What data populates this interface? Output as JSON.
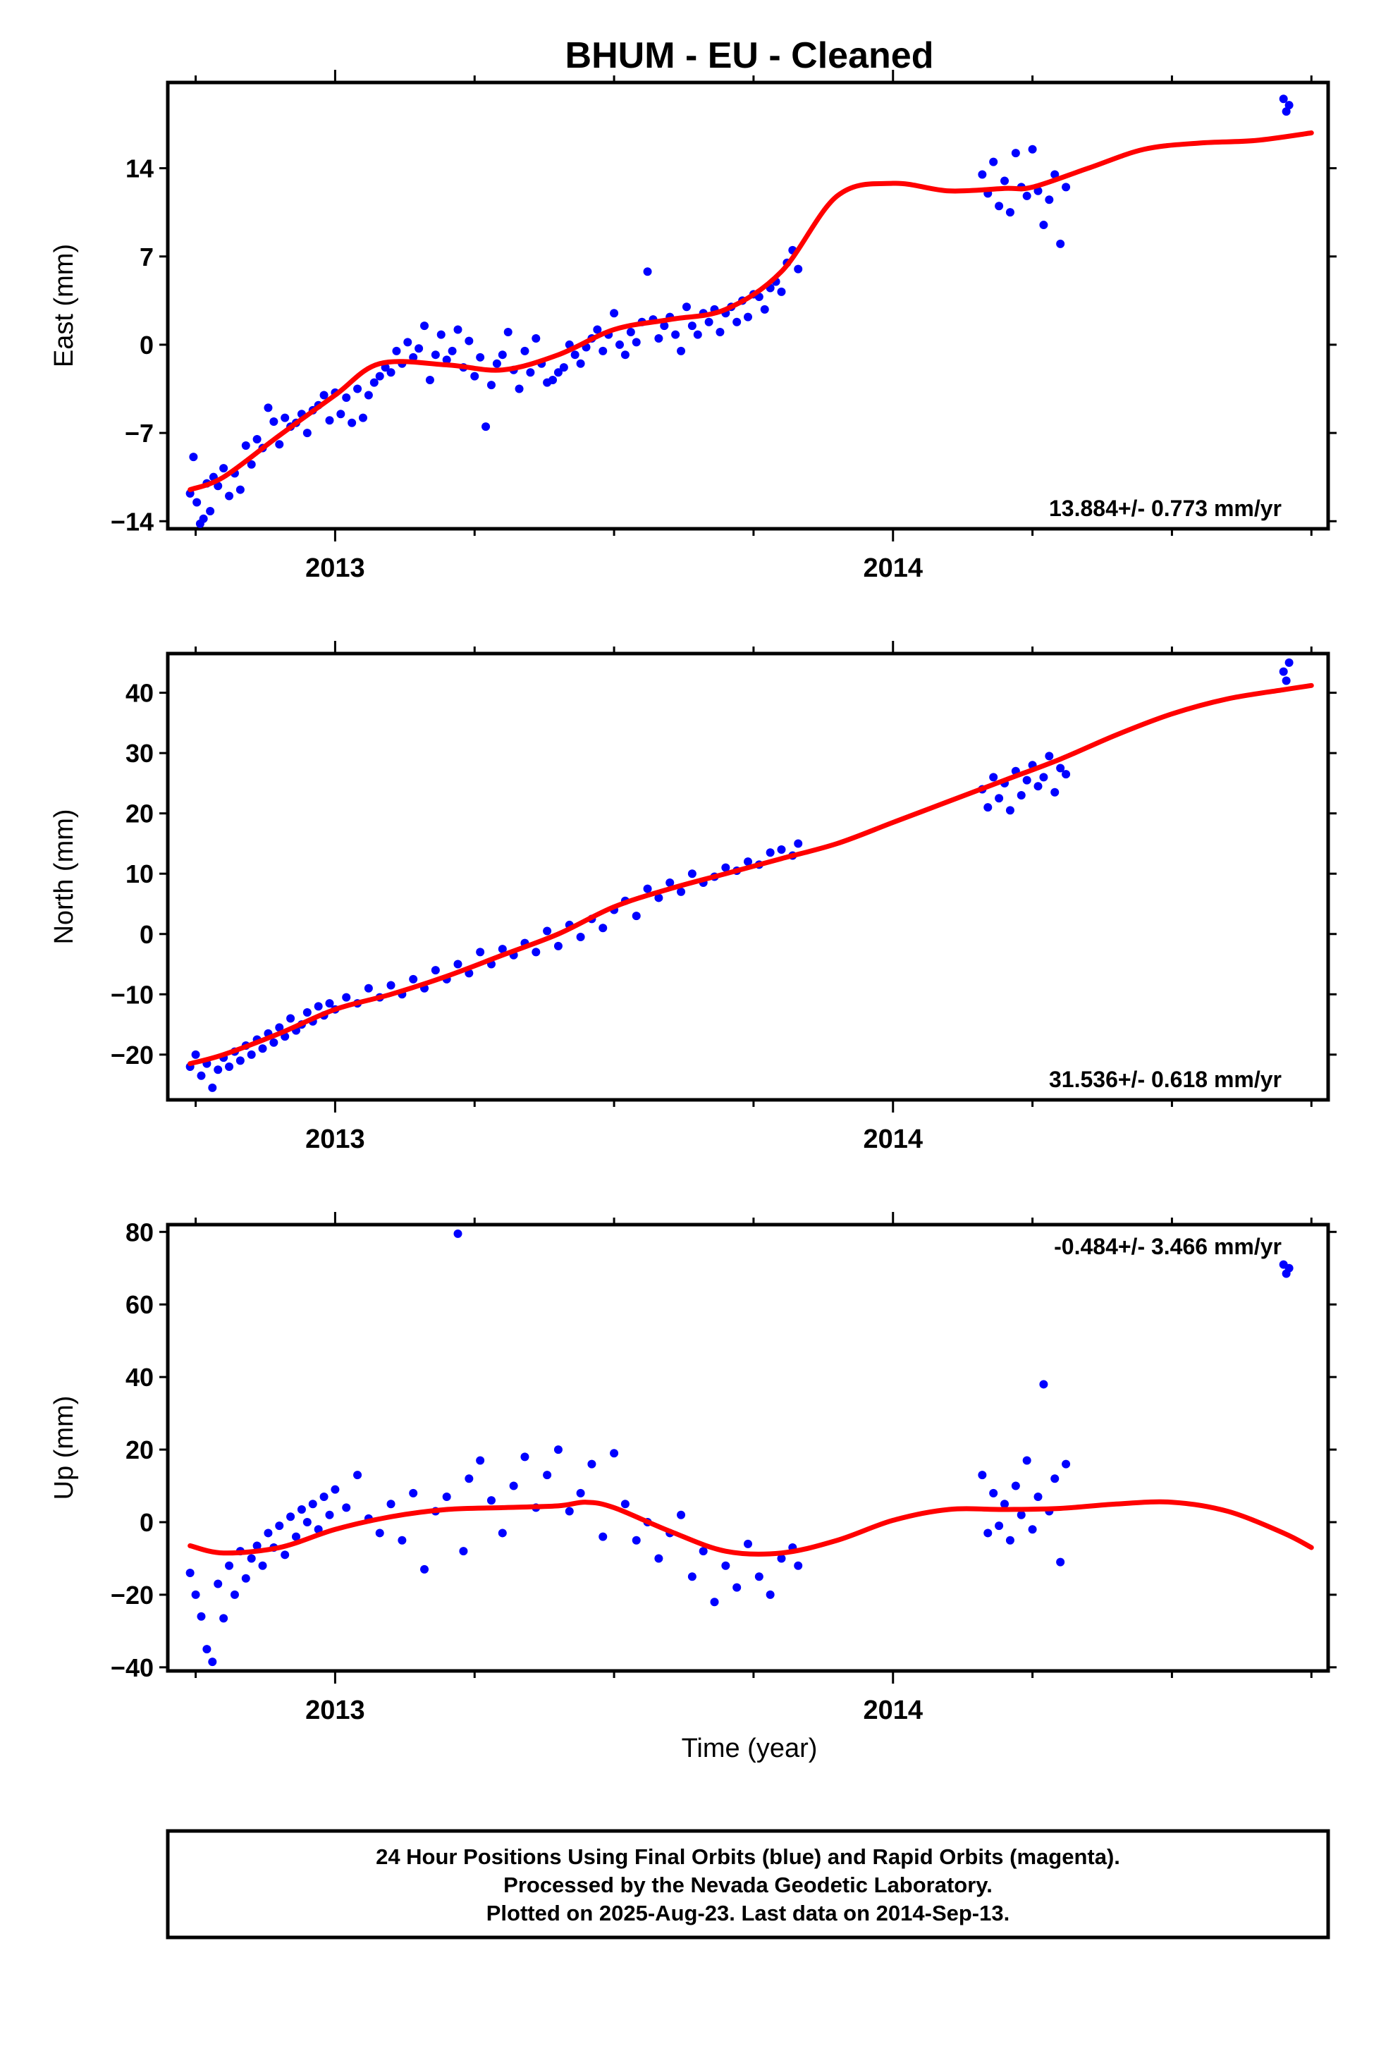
{
  "title": "BHUM  - EU - Cleaned",
  "xlabel": "Time (year)",
  "footer": [
    "24 Hour Positions Using Final Orbits (blue) and Rapid Orbits (magenta).",
    "Processed by the Nevada Geodetic Laboratory.",
    "Plotted on 2025-Aug-23. Last data on 2014-Sep-13."
  ],
  "colors": {
    "points": "#0000ff",
    "fit": "#ff0000",
    "frame": "#000000"
  },
  "chart_data": [
    {
      "type": "scatter",
      "name": "east",
      "ylabel": "East (mm)",
      "rate_text": "13.884+/- 0.773 mm/yr",
      "xlim": [
        2012.7,
        2014.78
      ],
      "ylim": [
        -14.6,
        20.8
      ],
      "yticks": [
        -14,
        -7,
        0,
        7,
        14
      ],
      "xticks": [
        2013,
        2014
      ],
      "fit": {
        "x": [
          2012.74,
          2012.8,
          2012.9,
          2013.0,
          2013.08,
          2013.2,
          2013.3,
          2013.4,
          2013.5,
          2013.6,
          2013.7,
          2013.8,
          2013.9,
          2014.0,
          2014.1,
          2014.2,
          2014.25,
          2014.35,
          2014.45,
          2014.55,
          2014.65,
          2014.75
        ],
        "y": [
          -11.5,
          -10.5,
          -7.2,
          -4.0,
          -1.5,
          -1.6,
          -2.0,
          -0.8,
          1.2,
          2.0,
          2.8,
          5.8,
          11.8,
          12.8,
          12.2,
          12.4,
          12.5,
          14.0,
          15.5,
          16.0,
          16.2,
          16.8
        ]
      },
      "points": {
        "x": [
          2012.74,
          2012.746,
          2012.752,
          2012.758,
          2012.764,
          2012.77,
          2012.776,
          2012.782,
          2012.79,
          2012.8,
          2012.81,
          2012.82,
          2012.83,
          2012.84,
          2012.85,
          2012.86,
          2012.87,
          2012.88,
          2012.89,
          2012.9,
          2012.91,
          2012.92,
          2012.93,
          2012.94,
          2012.95,
          2012.96,
          2012.97,
          2012.98,
          2012.99,
          2013.0,
          2013.01,
          2013.02,
          2013.03,
          2013.04,
          2013.05,
          2013.06,
          2013.07,
          2013.08,
          2013.09,
          2013.1,
          2013.11,
          2013.12,
          2013.13,
          2013.14,
          2013.15,
          2013.16,
          2013.17,
          2013.18,
          2013.19,
          2013.2,
          2013.21,
          2013.22,
          2013.23,
          2013.24,
          2013.25,
          2013.26,
          2013.27,
          2013.28,
          2013.29,
          2013.3,
          2013.31,
          2013.32,
          2013.33,
          2013.34,
          2013.35,
          2013.36,
          2013.37,
          2013.38,
          2013.39,
          2013.4,
          2013.41,
          2013.42,
          2013.43,
          2013.44,
          2013.45,
          2013.46,
          2013.47,
          2013.48,
          2013.49,
          2013.5,
          2013.51,
          2013.52,
          2013.53,
          2013.54,
          2013.55,
          2013.56,
          2013.57,
          2013.58,
          2013.59,
          2013.6,
          2013.61,
          2013.62,
          2013.63,
          2013.64,
          2013.65,
          2013.66,
          2013.67,
          2013.68,
          2013.69,
          2013.7,
          2013.71,
          2013.72,
          2013.73,
          2013.74,
          2013.75,
          2013.76,
          2013.77,
          2013.78,
          2013.79,
          2013.8,
          2013.81,
          2013.82,
          2013.83,
          2014.16,
          2014.17,
          2014.18,
          2014.19,
          2014.2,
          2014.21,
          2014.22,
          2014.23,
          2014.24,
          2014.25,
          2014.26,
          2014.27,
          2014.28,
          2014.29,
          2014.3,
          2014.31,
          2014.7,
          2014.705,
          2014.71
        ],
        "y": [
          -11.8,
          -8.9,
          -12.5,
          -14.2,
          -13.8,
          -11.0,
          -13.2,
          -10.5,
          -11.2,
          -9.8,
          -12.0,
          -10.2,
          -11.5,
          -8.0,
          -9.5,
          -7.5,
          -8.2,
          -5.0,
          -6.1,
          -7.9,
          -5.8,
          -6.5,
          -6.2,
          -5.5,
          -7.0,
          -5.2,
          -4.8,
          -4.0,
          -6.0,
          -3.8,
          -5.5,
          -4.2,
          -6.2,
          -3.5,
          -5.8,
          -4.0,
          -3.0,
          -2.5,
          -1.8,
          -2.2,
          -0.5,
          -1.5,
          0.2,
          -1.0,
          -0.3,
          1.5,
          -2.8,
          -0.8,
          0.8,
          -1.2,
          -0.5,
          1.2,
          -1.8,
          0.3,
          -2.5,
          -1.0,
          -6.5,
          -3.2,
          -1.5,
          -0.8,
          1.0,
          -2.0,
          -3.5,
          -0.5,
          -2.2,
          0.5,
          -1.5,
          -3.0,
          -2.8,
          -2.2,
          -1.8,
          0.0,
          -0.8,
          -1.5,
          -0.2,
          0.5,
          1.2,
          -0.5,
          0.8,
          2.5,
          0.0,
          -0.8,
          1.0,
          0.2,
          1.8,
          5.8,
          2.0,
          0.5,
          1.5,
          2.2,
          0.8,
          -0.5,
          3.0,
          1.5,
          0.8,
          2.5,
          1.8,
          2.8,
          1.0,
          2.5,
          3.0,
          1.8,
          3.5,
          2.2,
          4.0,
          3.8,
          2.8,
          4.5,
          5.0,
          4.2,
          6.5,
          7.5,
          6.0,
          13.5,
          12.0,
          14.5,
          11.0,
          13.0,
          10.5,
          15.2,
          12.5,
          11.8,
          15.5,
          12.2,
          9.5,
          11.5,
          13.5,
          8.0,
          12.5,
          19.5,
          18.5,
          19.0
        ]
      }
    },
    {
      "type": "scatter",
      "name": "north",
      "ylabel": "North (mm)",
      "rate_text": "31.536+/- 0.618 mm/yr",
      "xlim": [
        2012.7,
        2014.78
      ],
      "ylim": [
        -27.5,
        46.5
      ],
      "yticks": [
        -20,
        -10,
        0,
        10,
        20,
        30,
        40
      ],
      "xticks": [
        2013,
        2014
      ],
      "fit": {
        "x": [
          2012.74,
          2012.8,
          2012.9,
          2013.0,
          2013.1,
          2013.2,
          2013.3,
          2013.4,
          2013.5,
          2013.6,
          2013.7,
          2013.8,
          2013.9,
          2014.0,
          2014.1,
          2014.2,
          2014.3,
          2014.4,
          2014.5,
          2014.6,
          2014.7,
          2014.75
        ],
        "y": [
          -21.5,
          -20.0,
          -16.5,
          -12.5,
          -10.0,
          -7.0,
          -3.5,
          0.0,
          4.5,
          7.5,
          10.0,
          12.5,
          15.0,
          18.5,
          22.0,
          25.5,
          29.0,
          33.0,
          36.5,
          39.0,
          40.5,
          41.2
        ]
      },
      "points": {
        "x": [
          2012.74,
          2012.75,
          2012.76,
          2012.77,
          2012.78,
          2012.79,
          2012.8,
          2012.81,
          2012.82,
          2012.83,
          2012.84,
          2012.85,
          2012.86,
          2012.87,
          2012.88,
          2012.89,
          2012.9,
          2012.91,
          2012.92,
          2012.93,
          2012.94,
          2012.95,
          2012.96,
          2012.97,
          2012.98,
          2012.99,
          2013.0,
          2013.02,
          2013.04,
          2013.06,
          2013.08,
          2013.1,
          2013.12,
          2013.14,
          2013.16,
          2013.18,
          2013.2,
          2013.22,
          2013.24,
          2013.26,
          2013.28,
          2013.3,
          2013.32,
          2013.34,
          2013.36,
          2013.38,
          2013.4,
          2013.42,
          2013.44,
          2013.46,
          2013.48,
          2013.5,
          2013.52,
          2013.54,
          2013.56,
          2013.58,
          2013.6,
          2013.62,
          2013.64,
          2013.66,
          2013.68,
          2013.7,
          2013.72,
          2013.74,
          2013.76,
          2013.78,
          2013.8,
          2013.82,
          2013.83,
          2014.16,
          2014.17,
          2014.18,
          2014.19,
          2014.2,
          2014.21,
          2014.22,
          2014.23,
          2014.24,
          2014.25,
          2014.26,
          2014.27,
          2014.28,
          2014.29,
          2014.3,
          2014.31,
          2014.7,
          2014.705,
          2014.71
        ],
        "y": [
          -22.0,
          -20.0,
          -23.5,
          -21.5,
          -25.5,
          -22.5,
          -20.5,
          -22.0,
          -19.5,
          -21.0,
          -18.5,
          -20.0,
          -17.5,
          -19.0,
          -16.5,
          -18.0,
          -15.5,
          -17.0,
          -14.0,
          -16.0,
          -15.0,
          -13.0,
          -14.5,
          -12.0,
          -13.5,
          -11.5,
          -12.5,
          -10.5,
          -11.5,
          -9.0,
          -10.5,
          -8.5,
          -10.0,
          -7.5,
          -9.0,
          -6.0,
          -7.5,
          -5.0,
          -6.5,
          -3.0,
          -5.0,
          -2.5,
          -3.5,
          -1.5,
          -3.0,
          0.5,
          -2.0,
          1.5,
          -0.5,
          2.5,
          1.0,
          4.0,
          5.5,
          3.0,
          7.5,
          6.0,
          8.5,
          7.0,
          10.0,
          8.5,
          9.5,
          11.0,
          10.5,
          12.0,
          11.5,
          13.5,
          14.0,
          13.0,
          15.0,
          24.0,
          21.0,
          26.0,
          22.5,
          25.0,
          20.5,
          27.0,
          23.0,
          25.5,
          28.0,
          24.5,
          26.0,
          29.5,
          23.5,
          27.5,
          26.5,
          43.5,
          42.0,
          45.0
        ]
      }
    },
    {
      "type": "scatter",
      "name": "up",
      "ylabel": "Up (mm)",
      "rate_text": "-0.484+/- 3.466 mm/yr",
      "xlim": [
        2012.7,
        2014.78
      ],
      "ylim": [
        -41,
        82
      ],
      "yticks": [
        -40,
        -20,
        0,
        20,
        40,
        60,
        80
      ],
      "xticks": [
        2013,
        2014
      ],
      "fit": {
        "x": [
          2012.74,
          2012.8,
          2012.9,
          2013.0,
          2013.1,
          2013.2,
          2013.3,
          2013.4,
          2013.45,
          2013.5,
          2013.6,
          2013.7,
          2013.8,
          2013.9,
          2014.0,
          2014.1,
          2014.2,
          2014.3,
          2014.4,
          2014.5,
          2014.6,
          2014.7,
          2014.75
        ],
        "y": [
          -6.5,
          -8.5,
          -7.0,
          -2.0,
          1.5,
          3.5,
          4.0,
          4.5,
          5.5,
          4.0,
          -2.5,
          -8.0,
          -8.5,
          -5.0,
          0.5,
          3.5,
          3.5,
          3.8,
          5.0,
          5.5,
          3.0,
          -3.0,
          -7.0
        ]
      },
      "points": {
        "x": [
          2012.74,
          2012.75,
          2012.76,
          2012.77,
          2012.78,
          2012.79,
          2012.8,
          2012.81,
          2012.82,
          2012.83,
          2012.84,
          2012.85,
          2012.86,
          2012.87,
          2012.88,
          2012.89,
          2012.9,
          2012.91,
          2012.92,
          2012.93,
          2012.94,
          2012.95,
          2012.96,
          2012.97,
          2012.98,
          2012.99,
          2013.0,
          2013.02,
          2013.04,
          2013.06,
          2013.08,
          2013.1,
          2013.12,
          2013.14,
          2013.16,
          2013.18,
          2013.2,
          2013.22,
          2013.23,
          2013.24,
          2013.26,
          2013.28,
          2013.3,
          2013.32,
          2013.34,
          2013.36,
          2013.38,
          2013.4,
          2013.42,
          2013.44,
          2013.46,
          2013.48,
          2013.5,
          2013.52,
          2013.54,
          2013.56,
          2013.58,
          2013.6,
          2013.62,
          2013.64,
          2013.66,
          2013.68,
          2013.7,
          2013.72,
          2013.74,
          2013.76,
          2013.78,
          2013.8,
          2013.82,
          2013.83,
          2014.16,
          2014.17,
          2014.18,
          2014.19,
          2014.2,
          2014.21,
          2014.22,
          2014.23,
          2014.24,
          2014.25,
          2014.26,
          2014.27,
          2014.28,
          2014.29,
          2014.3,
          2014.31,
          2014.7,
          2014.705,
          2014.71
        ],
        "y": [
          -14.0,
          -20.0,
          -26.0,
          -35.0,
          -38.5,
          -17.0,
          -26.5,
          -12.0,
          -20.0,
          -8.0,
          -15.5,
          -10.0,
          -6.5,
          -12.0,
          -3.0,
          -7.0,
          -1.0,
          -9.0,
          1.5,
          -4.0,
          3.5,
          0.0,
          5.0,
          -2.0,
          7.0,
          2.0,
          9.0,
          4.0,
          13.0,
          1.0,
          -3.0,
          5.0,
          -5.0,
          8.0,
          -13.0,
          3.0,
          7.0,
          79.5,
          -8.0,
          12.0,
          17.0,
          6.0,
          -3.0,
          10.0,
          18.0,
          4.0,
          13.0,
          20.0,
          3.0,
          8.0,
          16.0,
          -4.0,
          19.0,
          5.0,
          -5.0,
          0.0,
          -10.0,
          -3.0,
          2.0,
          -15.0,
          -8.0,
          -22.0,
          -12.0,
          -18.0,
          -6.0,
          -15.0,
          -20.0,
          -10.0,
          -7.0,
          -12.0,
          13.0,
          -3.0,
          8.0,
          -1.0,
          5.0,
          -5.0,
          10.0,
          2.0,
          17.0,
          -2.0,
          7.0,
          38.0,
          3.0,
          12.0,
          -11.0,
          16.0,
          71.0,
          68.5,
          70.0
        ]
      }
    }
  ]
}
